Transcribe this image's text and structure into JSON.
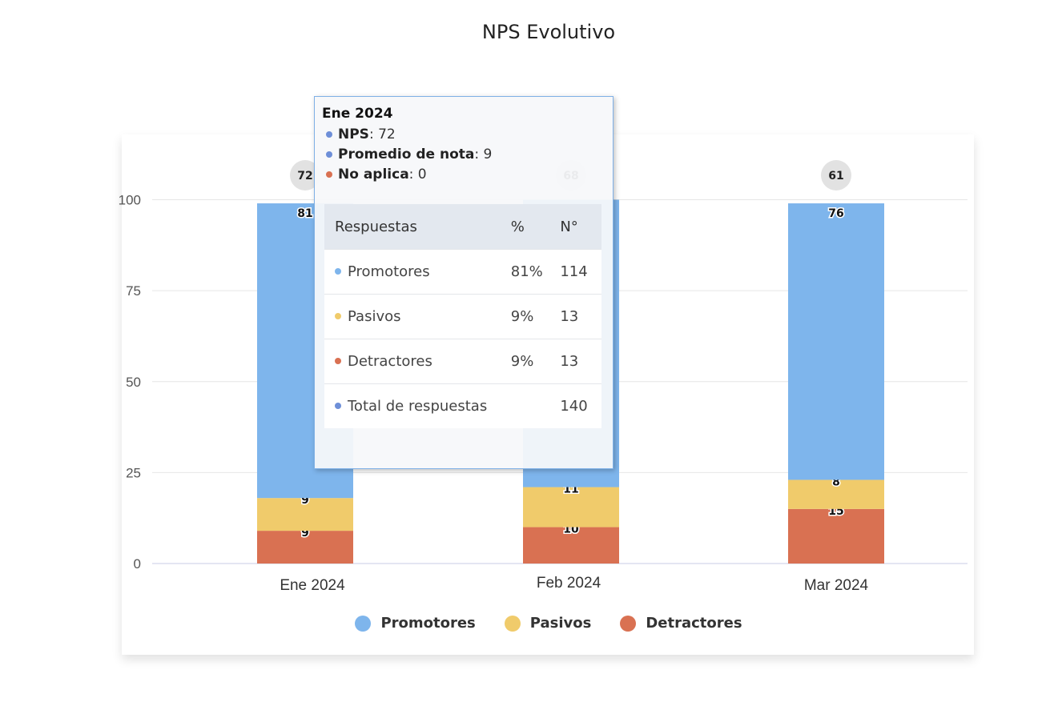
{
  "colors": {
    "promotores": "#7eb5ec",
    "pasivos": "#f0cb6b",
    "detractores": "#d97152",
    "nps_badge": "#e2e2e2",
    "grid": "#e6e6e6",
    "axis": "#c9cce6"
  },
  "chart_data": {
    "type": "bar",
    "stacked": true,
    "title": "NPS Evolutivo",
    "categories": [
      "Ene 2024",
      "Feb 2024",
      "Mar 2024"
    ],
    "series": [
      {
        "name": "Detractores",
        "values": [
          9,
          10,
          15
        ]
      },
      {
        "name": "Pasivos",
        "values": [
          9,
          11,
          8
        ]
      },
      {
        "name": "Promotores",
        "values": [
          81,
          79,
          76
        ]
      }
    ],
    "data_labels": {
      "Detractores": [
        "9",
        "10",
        "15"
      ],
      "Pasivos": [
        "9",
        "11",
        "8"
      ],
      "Promotores": [
        "81",
        "",
        "76"
      ]
    },
    "nps": [
      "72",
      "68",
      "61"
    ],
    "ylim": [
      0,
      100
    ],
    "yticks": [
      "0",
      "25",
      "50",
      "75",
      "100"
    ],
    "grid": true,
    "legend": [
      "Promotores",
      "Pasivos",
      "Detractores"
    ],
    "legend_position": "bottom"
  },
  "tooltip": {
    "title": "Ene 2024",
    "lines": [
      {
        "label": "NPS",
        "value": ": 72",
        "color": "#6e8fd8"
      },
      {
        "label": "Promedio de nota",
        "value": ": 9",
        "color": "#6e8fd8"
      },
      {
        "label": "No aplica",
        "value": ": 0",
        "color": "#d97152"
      }
    ],
    "table": {
      "headers": [
        "Respuestas",
        "%",
        "N°"
      ],
      "rows": [
        {
          "label": "Promotores",
          "pct": "81%",
          "n": "114",
          "color": "#7eb5ec"
        },
        {
          "label": "Pasivos",
          "pct": "9%",
          "n": "13",
          "color": "#f0cb6b"
        },
        {
          "label": "Detractores",
          "pct": "9%",
          "n": "13",
          "color": "#d97152"
        },
        {
          "label": "Total de respuestas",
          "pct": "",
          "n": "140",
          "color": "#6e8fd8"
        }
      ]
    }
  }
}
